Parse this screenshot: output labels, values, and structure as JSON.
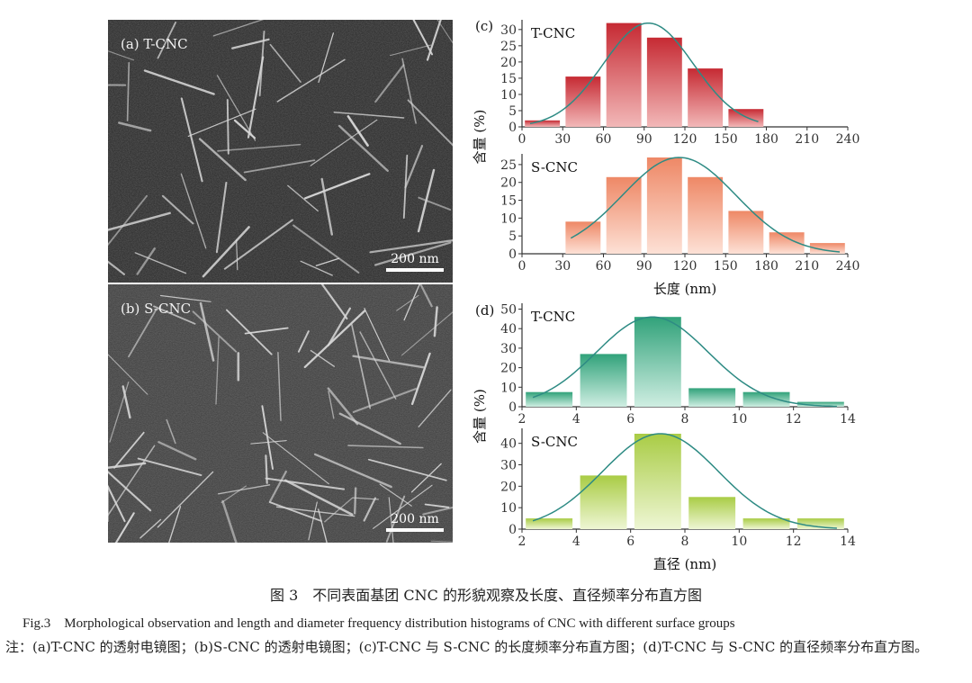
{
  "panels": [
    {
      "label": "(a) T-CNC",
      "scale_bar": "200 nm"
    },
    {
      "label": "(b) S-CNC",
      "scale_bar": "200 nm"
    }
  ],
  "chart_data": [
    {
      "type": "bar",
      "panel": "(c)",
      "title": "T-CNC",
      "x": [
        15,
        45,
        75,
        105,
        135,
        165
      ],
      "values": [
        2,
        15.5,
        32,
        27.5,
        18,
        5.5
      ],
      "xlim": [
        0,
        240
      ],
      "xticks": [
        0,
        30,
        60,
        90,
        120,
        150,
        180,
        210,
        240
      ],
      "ylim": [
        0,
        33
      ],
      "yticks": [
        0,
        5,
        10,
        15,
        20,
        25,
        30
      ],
      "fit": "normal curve",
      "colors": [
        "#f2b8b8",
        "#c62a33"
      ]
    },
    {
      "type": "bar",
      "panel": "(c)",
      "title": "S-CNC",
      "x": [
        45,
        75,
        105,
        135,
        165,
        195,
        225
      ],
      "values": [
        9,
        21.5,
        27,
        21.5,
        12,
        6,
        3
      ],
      "xlim": [
        0,
        240
      ],
      "xticks": [
        0,
        30,
        60,
        90,
        120,
        150,
        180,
        210,
        240
      ],
      "ylim": [
        0,
        28
      ],
      "yticks": [
        0,
        5,
        10,
        15,
        20,
        25
      ],
      "xlabel": "长度 (nm)",
      "ylabel": "含量 (%)",
      "fit": "normal curve",
      "colors": [
        "#fde1d6",
        "#ee8866"
      ]
    },
    {
      "type": "bar",
      "panel": "(d)",
      "title": "T-CNC",
      "x": [
        3,
        5,
        7,
        9,
        11,
        13
      ],
      "values": [
        7.5,
        27,
        46,
        9.5,
        7.5,
        2.5
      ],
      "xlim": [
        2,
        14
      ],
      "xticks": [
        2,
        4,
        6,
        8,
        10,
        12,
        14
      ],
      "ylim": [
        0,
        53
      ],
      "yticks": [
        0,
        10,
        20,
        30,
        40,
        50
      ],
      "fit": "normal curve",
      "colors": [
        "#cfeee2",
        "#31a27a"
      ]
    },
    {
      "type": "bar",
      "panel": "(d)",
      "title": "S-CNC",
      "x": [
        3,
        5,
        7,
        9,
        11,
        13
      ],
      "values": [
        5,
        25,
        44.5,
        15,
        5,
        5
      ],
      "xlim": [
        2,
        14
      ],
      "xticks": [
        2,
        4,
        6,
        8,
        10,
        12,
        14
      ],
      "ylim": [
        0,
        47
      ],
      "yticks": [
        0,
        10,
        20,
        30,
        40
      ],
      "xlabel": "直径 (nm)",
      "ylabel": "含量 (%)",
      "fit": "normal curve",
      "colors": [
        "#eef6d4",
        "#a9cc45"
      ]
    }
  ],
  "caption": {
    "title": "图 3　不同表面基团 CNC 的形貌观察及长度、直径频率分布直方图",
    "english": "Fig.3　Morphological observation and length and diameter frequency distribution histograms of CNC with different surface groups",
    "note": "注：(a)T-CNC 的透射电镜图；(b)S-CNC 的透射电镜图；(c)T-CNC 与 S-CNC 的长度频率分布直方图；(d)T-CNC 与 S-CNC 的直径频率分布直方图。"
  },
  "colors": {
    "fit_curve": "#2e8b84",
    "axis": "#333333"
  }
}
